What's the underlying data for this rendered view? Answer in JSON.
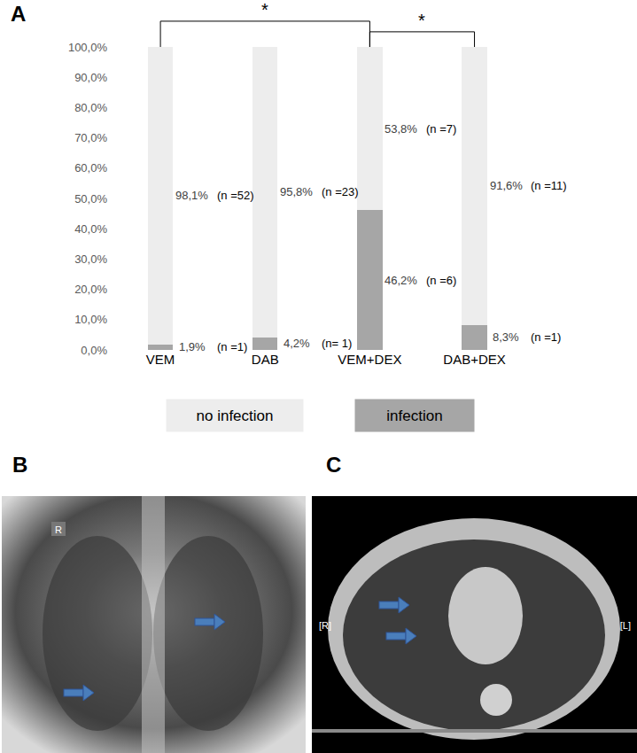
{
  "chart_data": {
    "type": "bar",
    "stacked": true,
    "data_labels": true,
    "grid": false,
    "legend": "bottom",
    "categories": [
      "VEM",
      "DAB",
      "VEM+DEX",
      "DAB+DEX"
    ],
    "series": [
      {
        "name": "infection",
        "color": "#a6a6a6",
        "values": [
          1.9,
          4.2,
          46.2,
          8.3
        ],
        "value_labels": [
          "1,9%",
          "4,2%",
          "46,2%",
          "8,3%"
        ],
        "annotations": [
          "(n =1)",
          "(n= 1)",
          "(n =6)",
          "(n =1)"
        ]
      },
      {
        "name": "no infection",
        "color": "#ededed",
        "values": [
          98.1,
          95.8,
          53.8,
          91.6
        ],
        "value_labels": [
          "98,1%",
          "95,8%",
          "53,8%",
          "91,6%"
        ],
        "annotations": [
          "(n =52)",
          "(n =23)",
          "(n =7)",
          "(n =11)"
        ]
      }
    ],
    "ylim": [
      0,
      100
    ],
    "yticks": [
      {
        "value": 0,
        "label": "0,0%"
      },
      {
        "value": 10,
        "label": "10,0%"
      },
      {
        "value": 20,
        "label": "20,0%"
      },
      {
        "value": 30,
        "label": "30,0%"
      },
      {
        "value": 40,
        "label": "40,0%"
      },
      {
        "value": 50,
        "label": "50,0%"
      },
      {
        "value": 60,
        "label": "60,0%"
      },
      {
        "value": 70,
        "label": "70,0%"
      },
      {
        "value": 80,
        "label": "80,0%"
      },
      {
        "value": 90,
        "label": "90,0%"
      },
      {
        "value": 100,
        "label": "100,0%"
      }
    ],
    "significance": [
      {
        "from": "VEM",
        "to": "VEM+DEX",
        "label": "*"
      },
      {
        "from": "VEM+DEX",
        "to": "DAB+DEX",
        "label": "*"
      }
    ]
  },
  "panels": [
    {
      "label": "A"
    },
    {
      "label": "B",
      "texts": [
        "R"
      ]
    },
    {
      "label": "C",
      "texts": [
        "[R]",
        "[L]"
      ]
    }
  ]
}
